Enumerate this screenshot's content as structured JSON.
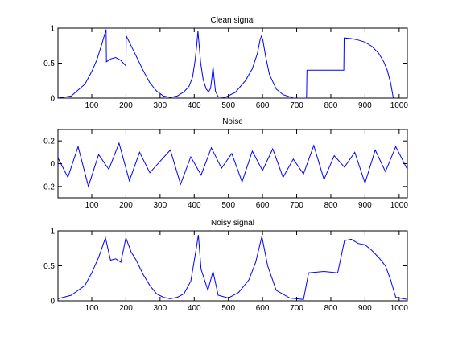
{
  "chart_data": [
    {
      "type": "line",
      "title": "Clean signal",
      "xlabel": "",
      "ylabel": "",
      "xlim": [
        1,
        1024
      ],
      "ylim": [
        0,
        1
      ],
      "xticks": [
        100,
        200,
        300,
        400,
        500,
        600,
        700,
        800,
        900,
        1000
      ],
      "xtick_labels": [
        "100",
        "200",
        "300",
        "400",
        "500",
        "600",
        "700",
        "800",
        "900",
        "1000"
      ],
      "yticks": [
        0,
        0.5,
        1
      ],
      "ytick_labels": [
        "0",
        "0.5",
        "1"
      ],
      "grid": false,
      "line_color": "#0000ff",
      "series": [
        {
          "x": [
            1,
            40,
            80,
            100,
            115,
            130,
            142,
            143,
            155,
            170,
            185,
            200,
            201,
            215,
            230,
            250,
            270,
            290,
            310,
            330,
            350,
            370,
            385,
            395,
            403,
            408,
            411,
            414,
            419,
            426,
            435,
            442,
            448,
            452,
            455,
            458,
            462,
            470,
            490,
            520,
            550,
            570,
            585,
            593,
            597,
            601,
            609,
            620,
            640,
            660,
            685,
            690,
            729,
            730,
            838,
            839,
            860,
            880,
            900,
            920,
            940,
            955,
            965,
            975,
            983
          ],
          "y": [
            0,
            0.03,
            0.2,
            0.38,
            0.55,
            0.78,
            0.98,
            0.52,
            0.56,
            0.58,
            0.54,
            0.46,
            0.89,
            0.75,
            0.6,
            0.4,
            0.22,
            0.1,
            0.03,
            0.01,
            0.03,
            0.09,
            0.17,
            0.3,
            0.55,
            0.8,
            0.96,
            0.78,
            0.5,
            0.27,
            0.13,
            0.09,
            0.14,
            0.3,
            0.45,
            0.29,
            0.1,
            0.02,
            0.01,
            0.08,
            0.25,
            0.42,
            0.64,
            0.84,
            0.89,
            0.83,
            0.6,
            0.34,
            0.13,
            0.05,
            0.01,
            0,
            0,
            0.4,
            0.4,
            0.86,
            0.85,
            0.83,
            0.8,
            0.74,
            0.64,
            0.52,
            0.4,
            0.22,
            0
          ]
        }
      ]
    },
    {
      "type": "line",
      "title": "Noise",
      "xlabel": "",
      "ylabel": "",
      "xlim": [
        1,
        1024
      ],
      "ylim": [
        -0.3,
        0.3
      ],
      "xticks": [
        100,
        200,
        300,
        400,
        500,
        600,
        700,
        800,
        900,
        1000
      ],
      "xtick_labels": [
        "100",
        "200",
        "300",
        "400",
        "500",
        "600",
        "700",
        "800",
        "900",
        "1000"
      ],
      "yticks": [
        0.2,
        0,
        -0.2
      ],
      "ytick_labels": [
        "0.2",
        "0",
        "-0.2"
      ],
      "grid": false,
      "line_color": "#0000ff",
      "series": [
        {
          "x": [
            1,
            30,
            60,
            90,
            120,
            150,
            180,
            210,
            240,
            270,
            300,
            330,
            360,
            390,
            420,
            450,
            480,
            510,
            540,
            570,
            600,
            630,
            660,
            690,
            720,
            750,
            780,
            810,
            840,
            870,
            900,
            930,
            960,
            990,
            1024
          ],
          "y": [
            0.05,
            -0.12,
            0.15,
            -0.2,
            0.08,
            -0.05,
            0.18,
            -0.15,
            0.1,
            -0.08,
            0.02,
            0.12,
            -0.18,
            0.06,
            -0.1,
            0.14,
            -0.04,
            0.09,
            -0.16,
            0.11,
            -0.06,
            0.13,
            -0.12,
            0.04,
            -0.09,
            0.16,
            -0.14,
            0.07,
            -0.03,
            0.1,
            -0.17,
            0.12,
            -0.07,
            0.15,
            -0.05
          ]
        }
      ]
    },
    {
      "type": "line",
      "title": "Noisy signal",
      "xlabel": "",
      "ylabel": "",
      "xlim": [
        1,
        1024
      ],
      "ylim": [
        0,
        1
      ],
      "xticks": [
        100,
        200,
        300,
        400,
        500,
        600,
        700,
        800,
        900,
        1000
      ],
      "xtick_labels": [
        "100",
        "200",
        "300",
        "400",
        "500",
        "600",
        "700",
        "800",
        "900",
        "1000"
      ],
      "yticks": [
        0,
        0.5,
        1
      ],
      "ytick_labels": [
        "0",
        "0.5",
        "1"
      ],
      "grid": false,
      "line_color": "#0000ff",
      "series": [
        {
          "x": [
            1,
            40,
            80,
            100,
            120,
            140,
            155,
            170,
            185,
            200,
            215,
            230,
            250,
            270,
            290,
            310,
            330,
            350,
            370,
            390,
            405,
            412,
            420,
            440,
            455,
            470,
            500,
            530,
            560,
            580,
            598,
            615,
            640,
            680,
            720,
            735,
            780,
            820,
            840,
            860,
            880,
            900,
            920,
            940,
            960,
            975,
            990,
            1024
          ],
          "y": [
            0.03,
            0.08,
            0.22,
            0.4,
            0.62,
            0.9,
            0.58,
            0.6,
            0.55,
            0.9,
            0.7,
            0.58,
            0.38,
            0.22,
            0.1,
            0.05,
            0.03,
            0.05,
            0.1,
            0.28,
            0.72,
            0.94,
            0.45,
            0.15,
            0.42,
            0.08,
            0.04,
            0.12,
            0.3,
            0.55,
            0.92,
            0.5,
            0.15,
            0.04,
            0.02,
            0.4,
            0.42,
            0.4,
            0.86,
            0.88,
            0.82,
            0.8,
            0.72,
            0.62,
            0.5,
            0.3,
            0.05,
            0.02
          ]
        }
      ]
    }
  ]
}
